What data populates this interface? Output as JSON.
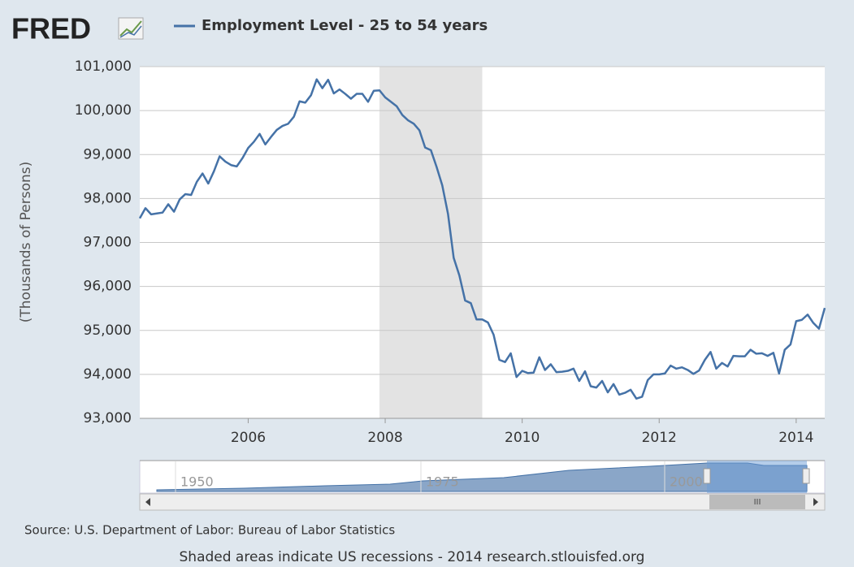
{
  "header": {
    "logo": "FRED"
  },
  "chart_data": {
    "type": "line",
    "y_label": "(Thousands of Persons)",
    "x": [
      2004.417,
      2004.5,
      2004.583,
      2004.667,
      2004.75,
      2004.833,
      2004.917,
      2005,
      2005.083,
      2005.167,
      2005.25,
      2005.333,
      2005.417,
      2005.5,
      2005.583,
      2005.667,
      2005.75,
      2005.833,
      2005.917,
      2006,
      2006.083,
      2006.167,
      2006.25,
      2006.333,
      2006.417,
      2006.5,
      2006.583,
      2006.667,
      2006.75,
      2006.833,
      2006.917,
      2007,
      2007.083,
      2007.167,
      2007.25,
      2007.333,
      2007.417,
      2007.5,
      2007.583,
      2007.667,
      2007.75,
      2007.833,
      2007.917,
      2008,
      2008.083,
      2008.167,
      2008.25,
      2008.333,
      2008.417,
      2008.5,
      2008.583,
      2008.667,
      2008.75,
      2008.833,
      2008.917,
      2009,
      2009.083,
      2009.167,
      2009.25,
      2009.333,
      2009.417,
      2009.5,
      2009.583,
      2009.667,
      2009.75,
      2009.833,
      2009.917,
      2010,
      2010.083,
      2010.167,
      2010.25,
      2010.333,
      2010.417,
      2010.5,
      2010.583,
      2010.667,
      2010.75,
      2010.833,
      2010.917,
      2011,
      2011.083,
      2011.167,
      2011.25,
      2011.333,
      2011.417,
      2011.5,
      2011.583,
      2011.667,
      2011.75,
      2011.833,
      2011.917,
      2012,
      2012.083,
      2012.167,
      2012.25,
      2012.333,
      2012.417,
      2012.5,
      2012.583,
      2012.667,
      2012.75,
      2012.833,
      2012.917,
      2013,
      2013.083,
      2013.167,
      2013.25,
      2013.333,
      2013.417,
      2013.5,
      2013.583,
      2013.667,
      2013.75,
      2013.833,
      2013.917,
      2014,
      2014.083,
      2014.167,
      2014.25,
      2014.333,
      2014.417
    ],
    "series": [
      {
        "name": "Employment Level - 25 to 54 years",
        "color": "#4572a7",
        "values": [
          97550,
          97780,
          97640,
          97660,
          97680,
          97870,
          97700,
          97980,
          98100,
          98080,
          98380,
          98570,
          98340,
          98620,
          98960,
          98840,
          98760,
          98730,
          98920,
          99150,
          99290,
          99470,
          99230,
          99400,
          99560,
          99650,
          99700,
          99860,
          100210,
          100180,
          100350,
          100710,
          100510,
          100700,
          100390,
          100480,
          100380,
          100270,
          100380,
          100380,
          100200,
          100450,
          100460,
          100300,
          100200,
          100100,
          99900,
          99780,
          99700,
          99550,
          99160,
          99100,
          98720,
          98300,
          97650,
          96650,
          96250,
          95680,
          95620,
          95250,
          95250,
          95180,
          94900,
          94330,
          94280,
          94480,
          93940,
          94080,
          94030,
          94040,
          94390,
          94100,
          94230,
          94050,
          94060,
          94080,
          94130,
          93850,
          94070,
          93730,
          93700,
          93850,
          93590,
          93780,
          93540,
          93580,
          93650,
          93450,
          93490,
          93870,
          94000,
          94000,
          94020,
          94200,
          94130,
          94160,
          94100,
          94010,
          94090,
          94330,
          94510,
          94130,
          94260,
          94180,
          94420,
          94410,
          94410,
          94560,
          94470,
          94480,
          94420,
          94490,
          94020,
          94560,
          94680,
          95210,
          95240,
          95360,
          95170,
          95040,
          95510
        ]
      }
    ],
    "recessions": [
      [
        2007.917,
        2009.417
      ]
    ],
    "xlim": [
      2004.417,
      2014.417
    ],
    "xticks": [
      2006,
      2008,
      2010,
      2012,
      2014
    ],
    "ylim": [
      93000,
      101000
    ],
    "yticks": [
      {
        "value": 93000,
        "label": "93,000"
      },
      {
        "value": 94000,
        "label": "94,000"
      },
      {
        "value": 95000,
        "label": "95,000"
      },
      {
        "value": 96000,
        "label": "96,000"
      },
      {
        "value": 97000,
        "label": "97,000"
      },
      {
        "value": 98000,
        "label": "98,000"
      },
      {
        "value": 99000,
        "label": "99,000"
      },
      {
        "value": 100000,
        "label": "100,000"
      },
      {
        "value": 101000,
        "label": "101,000"
      }
    ],
    "grid": true
  },
  "navigator": {
    "labels": [
      "1950",
      "1975",
      "2000"
    ]
  },
  "footer": {
    "source": "Source: U.S. Department of Labor: Bureau of Labor Statistics",
    "note": "Shaded areas indicate US recessions - 2014 research.stlouisfed.org"
  }
}
